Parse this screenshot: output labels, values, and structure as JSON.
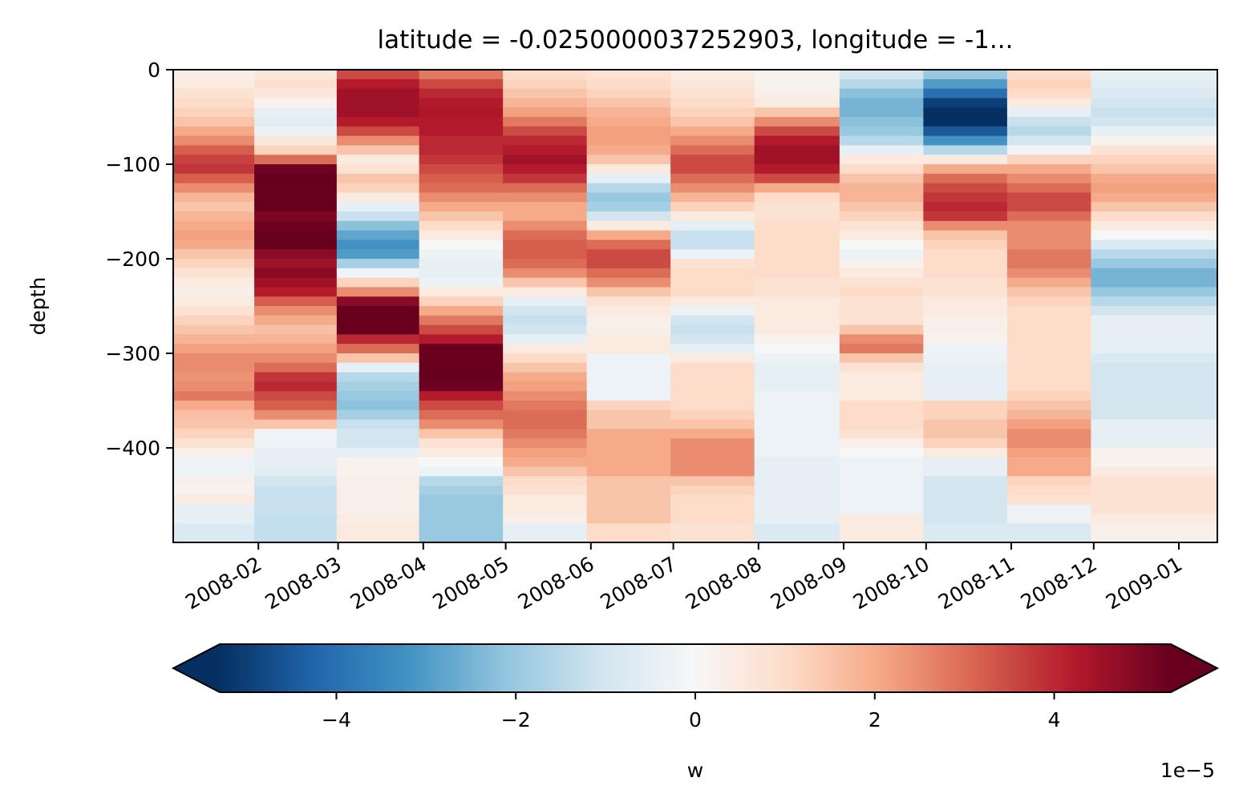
{
  "chart_data": {
    "type": "heatmap",
    "title": "latitude = -0.0250000037252903, longitude = -1...",
    "xlabel": "",
    "ylabel": "depth",
    "x": [
      "2008-01-15",
      "2008-02-15",
      "2008-03-15",
      "2008-04-15",
      "2008-05-15",
      "2008-06-15",
      "2008-07-15",
      "2008-08-15",
      "2008-09-15",
      "2008-10-15",
      "2008-11-15",
      "2008-12-15"
    ],
    "xlim": [
      "2008-01-01",
      "2009-01-15"
    ],
    "x_ticks": [
      "2008-02",
      "2008-03",
      "2008-04",
      "2008-05",
      "2008-06",
      "2008-07",
      "2008-08",
      "2008-09",
      "2008-10",
      "2008-11",
      "2008-12",
      "2009-01"
    ],
    "ylim": [
      -500,
      0
    ],
    "y_ticks": [
      0,
      -100,
      -200,
      -300,
      -400
    ],
    "depth_levels": [
      0,
      -10,
      -20,
      -30,
      -40,
      -50,
      -60,
      -70,
      -80,
      -90,
      -100,
      -110,
      -120,
      -130,
      -140,
      -150,
      -160,
      -170,
      -180,
      -190,
      -200,
      -210,
      -220,
      -230,
      -240,
      -250,
      -260,
      -270,
      -280,
      -290,
      -300,
      -310,
      -320,
      -330,
      -340,
      -350,
      -360,
      -370,
      -380,
      -390,
      -400,
      -410,
      -420,
      -430,
      -440,
      -450,
      -460,
      -470,
      -480,
      -490
    ],
    "value_unit_scale": "1e-05",
    "values": [
      [
        0.3,
        0.5,
        0.8,
        1,
        1.2,
        1.5,
        2,
        2.5,
        3.2,
        3.6,
        3.8,
        3.2,
        2.5,
        1.8,
        1.5,
        1.8,
        2,
        2.2,
        2,
        1.5,
        1.2,
        0.8,
        0.5,
        0.3,
        0.5,
        0.8,
        1.2,
        1.5,
        1.8,
        2.2,
        2.5,
        2.5,
        2.4,
        2.5,
        2.8,
        2,
        1.6,
        1.5,
        1.2,
        0.8,
        0.3,
        -0.3,
        -0.3,
        0.3,
        0.2,
        0.5,
        -0.5,
        -0.5,
        -0.8,
        -0.8
      ],
      [
        0.6,
        0.9,
        0.6,
        0.2,
        -0.4,
        -0.6,
        -0.3,
        0.6,
        1.2,
        3,
        5.2,
        5.8,
        5.8,
        5.8,
        5.5,
        5,
        5.2,
        5.5,
        5.5,
        4.8,
        4.5,
        4.8,
        4.5,
        4.2,
        3.2,
        2.5,
        2,
        1.6,
        1.8,
        2.2,
        2.5,
        3,
        3.8,
        4,
        3.5,
        3.2,
        2.5,
        1.5,
        -0.2,
        -0.3,
        -0.5,
        -0.5,
        -0.6,
        -1,
        -1.2,
        -1.2,
        -1.2,
        -1.3,
        -1.3,
        -1.3
      ],
      [
        3.5,
        4.2,
        4.5,
        4.5,
        4.5,
        4.2,
        3.5,
        2.5,
        1.5,
        0.5,
        0.8,
        1.5,
        1.2,
        0.5,
        -0.5,
        -1.2,
        -2.2,
        -2.8,
        -3.2,
        -3,
        -1.8,
        -0.2,
        1.2,
        2.5,
        4.8,
        5.8,
        6,
        5.5,
        4,
        3,
        1.5,
        -0.5,
        -1.5,
        -1.8,
        -2,
        -2.2,
        -1.8,
        -1.2,
        -1,
        -1,
        -0.5,
        0.2,
        0.2,
        0.3,
        0.3,
        0.3,
        0.3,
        0.4,
        0.5,
        0.5
      ],
      [
        2.8,
        3.5,
        4,
        4.2,
        4.3,
        4.2,
        4.2,
        4,
        4,
        3.8,
        3.5,
        3.2,
        3,
        2.5,
        2,
        1.5,
        1,
        0.5,
        0,
        -0.3,
        -0.5,
        -0.5,
        -0.3,
        0.5,
        1.2,
        2,
        2.8,
        3.5,
        4.2,
        5.5,
        6,
        6,
        5.8,
        5.2,
        4.2,
        3.5,
        3,
        2.5,
        1.5,
        0.8,
        0.5,
        0,
        -0.3,
        -1.5,
        -1.8,
        -2,
        -2,
        -2,
        -2,
        -2
      ],
      [
        1,
        1.2,
        1.5,
        1.8,
        2.2,
        2.8,
        3.5,
        4,
        4.2,
        4.5,
        4.2,
        3.8,
        3,
        2.5,
        2,
        2,
        2.5,
        3,
        3.2,
        3.2,
        3,
        2.5,
        1.5,
        0.5,
        -0.5,
        -1,
        -1.2,
        -1,
        -0.5,
        0.5,
        1,
        1.5,
        2,
        2.2,
        2.5,
        2.8,
        3,
        3,
        2.8,
        2.5,
        2.2,
        2,
        1.5,
        1,
        0.8,
        0.5,
        0.5,
        0.3,
        -0.5,
        -0.5
      ],
      [
        0.8,
        1,
        1.2,
        1.5,
        1.8,
        2,
        2.2,
        2.2,
        2,
        1.5,
        0.5,
        -0.5,
        -1.5,
        -2,
        -1.8,
        -1,
        0.5,
        2,
        3,
        3.5,
        3.5,
        3,
        2.5,
        1.5,
        0.8,
        0.5,
        0.3,
        0.3,
        0.5,
        0.5,
        -0.3,
        -0.3,
        -0.3,
        -0.3,
        -0.3,
        1.2,
        1.5,
        1.5,
        2,
        2,
        2,
        2,
        2,
        1.5,
        1.5,
        1.5,
        1.5,
        1.5,
        1,
        1
      ],
      [
        0.5,
        0.6,
        0.8,
        1,
        1.2,
        1.5,
        2,
        2.5,
        3,
        3.5,
        3.5,
        3,
        2.5,
        1.8,
        1.2,
        0.5,
        -0.5,
        -1.2,
        -1.2,
        -0.3,
        0.8,
        1,
        1,
        1,
        0.5,
        -0.3,
        -1,
        -1.2,
        -1,
        -0.5,
        0.5,
        1,
        1,
        1,
        1,
        1,
        1.2,
        1.5,
        2,
        2.5,
        2.5,
        2.5,
        2.5,
        1.5,
        1.2,
        1,
        1,
        1,
        0.8,
        0.8
      ],
      [
        0.2,
        0.2,
        0.3,
        0.5,
        1.5,
        2.5,
        3.5,
        4.2,
        4.5,
        4.5,
        4.2,
        3.5,
        2,
        1,
        0.8,
        0.8,
        1,
        1,
        1,
        1,
        1,
        1,
        0.8,
        0.8,
        0.5,
        0.5,
        0.5,
        0.5,
        0.2,
        0,
        -0.3,
        -0.5,
        -0.5,
        -0.5,
        -0.3,
        -0.3,
        -0.3,
        -0.3,
        -0.3,
        -0.3,
        -0.3,
        -0.5,
        -0.5,
        -0.5,
        -0.5,
        -0.5,
        -0.5,
        -0.5,
        -0.8,
        -0.8
      ],
      [
        -1,
        -1.5,
        -2.2,
        -2.5,
        -2.5,
        -2.2,
        -2,
        -1.5,
        -0.5,
        0.5,
        1,
        1.5,
        1.8,
        1.8,
        1.5,
        1.2,
        0.8,
        0.5,
        0,
        -0.3,
        0.2,
        0.5,
        0.8,
        1,
        0.8,
        0.8,
        0.8,
        1.5,
        2.5,
        2.8,
        1.5,
        0.8,
        0.5,
        0.5,
        0.5,
        1,
        1,
        1,
        0.8,
        0.3,
        0,
        -0.3,
        -0.3,
        -0.3,
        -0.3,
        -0.3,
        -0.3,
        0.5,
        0.5,
        0.5
      ],
      [
        -2,
        -3,
        -4,
        -5,
        -5.5,
        -5.5,
        -4.5,
        -3.2,
        -1.5,
        0.5,
        2,
        3,
        3.5,
        3.8,
        4,
        3.8,
        2.5,
        1.5,
        1.2,
        1,
        1,
        1,
        0.8,
        0.8,
        0.5,
        0.5,
        0.3,
        0.3,
        0.2,
        -0.3,
        -0.3,
        -0.5,
        -0.5,
        -0.5,
        -0.5,
        1.2,
        1.2,
        1.5,
        1.5,
        1.2,
        0.5,
        -0.5,
        -0.5,
        -1,
        -1,
        -1,
        -1,
        -1,
        -0.8,
        -0.8
      ],
      [
        1,
        1.2,
        1,
        0.5,
        -0.5,
        -1.2,
        -1.5,
        -1,
        -0.2,
        1.2,
        2,
        2.5,
        3,
        3.5,
        3.5,
        3,
        2.5,
        2.5,
        2.5,
        2.8,
        2.8,
        2.5,
        2,
        1.5,
        1.2,
        1,
        1,
        1,
        1,
        1,
        1,
        1,
        1,
        1,
        1.2,
        1.5,
        1.8,
        2.2,
        2.5,
        2.5,
        2.2,
        2,
        2,
        1.2,
        1,
        0.8,
        -0.3,
        -0.3,
        -0.8,
        -0.8
      ],
      [
        -0.5,
        -0.6,
        -0.8,
        -1,
        -1.2,
        -1,
        -0.5,
        0.2,
        0.8,
        1.2,
        1.5,
        2,
        2.2,
        2,
        1.5,
        1,
        0.5,
        0,
        -0.8,
        -1.5,
        -2,
        -2.5,
        -2.5,
        -2,
        -1.5,
        -1,
        -0.5,
        -0.5,
        -0.5,
        -0.5,
        -0.8,
        -1,
        -1,
        -1,
        -1,
        -1,
        -1,
        -0.5,
        -0.5,
        -0.5,
        0.2,
        0.2,
        0.5,
        0.8,
        0.8,
        0.8,
        0.8,
        0.5,
        0.3,
        0.3
      ]
    ],
    "colormap": "RdBu_r",
    "colors": {
      "low": "#053061",
      "mid": "#f7f7f7",
      "high": "#67001f"
    },
    "colorbar": {
      "label": "w",
      "vmin": -5.3,
      "vmax": 5.3,
      "ticks": [
        -4,
        -2,
        0,
        2,
        4
      ],
      "tick_labels": [
        "−4",
        "−2",
        "0",
        "2",
        "4"
      ],
      "offset_text": "1e−5",
      "extend": "both",
      "orientation": "horizontal"
    },
    "y_tick_labels": [
      "0",
      "−100",
      "−200",
      "−300",
      "−400"
    ]
  }
}
